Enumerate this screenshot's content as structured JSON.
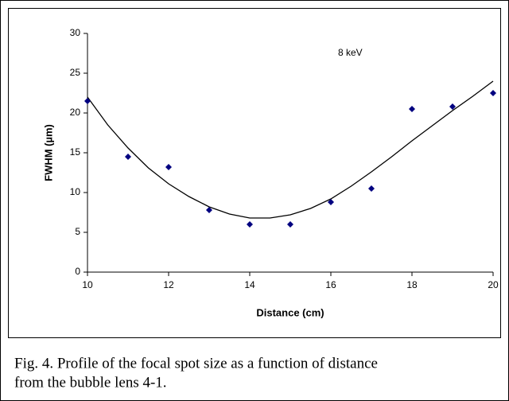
{
  "chart_data": {
    "type": "scatter",
    "annotation": "8 keV",
    "xlabel": "Distance (cm)",
    "ylabel": "FWHM (µm)",
    "x": [
      10,
      11,
      12,
      13,
      14,
      15,
      16,
      17,
      18,
      19,
      20
    ],
    "values": [
      21.5,
      14.5,
      13.2,
      7.8,
      6,
      6,
      8.8,
      10.5,
      20.5,
      20.8,
      22.5
    ],
    "color": "#000080",
    "trendline": {
      "color": "#000000",
      "x": [
        10,
        10.5,
        11,
        11.5,
        12,
        12.5,
        13,
        13.5,
        14,
        14.5,
        15,
        15.5,
        16,
        16.5,
        17,
        17.5,
        18,
        18.5,
        19,
        19.5,
        20
      ],
      "values": [
        22,
        18.5,
        15.6,
        13.1,
        11.1,
        9.5,
        8.2,
        7.3,
        6.8,
        6.8,
        7.2,
        8,
        9.2,
        10.8,
        12.6,
        14.5,
        16.5,
        18.4,
        20.3,
        22.1,
        24
      ]
    },
    "xlim": [
      10,
      20
    ],
    "xticks": [
      10,
      12,
      14,
      16,
      18,
      20
    ],
    "ylim": [
      0,
      30
    ],
    "yticks": [
      0,
      5,
      10,
      15,
      20,
      25,
      30
    ],
    "grid": false
  },
  "caption": [
    "Fig. 4.  Profile of the focal spot size as a function of distance",
    "from the bubble lens 4-1."
  ]
}
